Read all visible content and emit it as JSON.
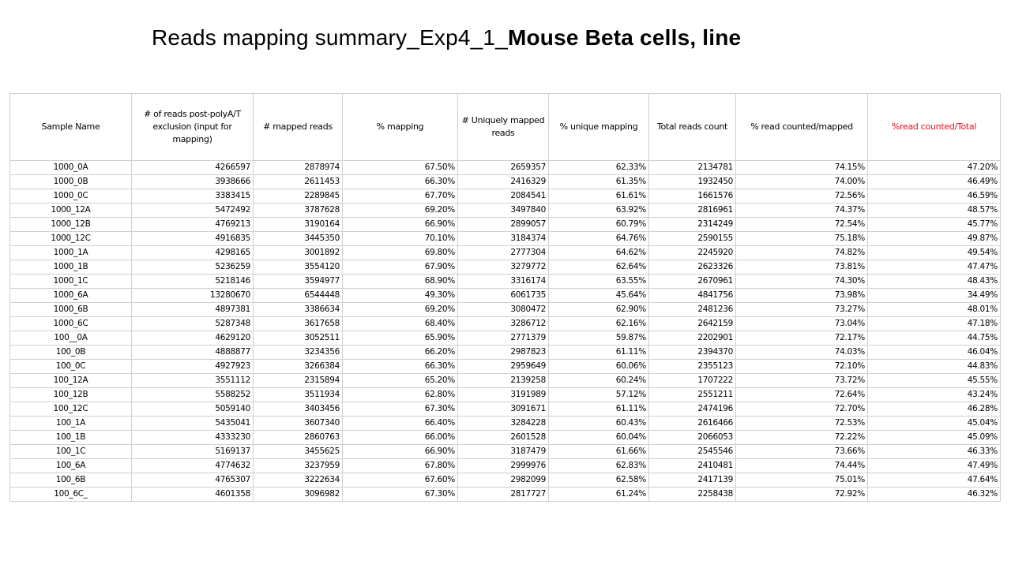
{
  "title": {
    "part_regular": "Reads mapping summary_Exp4_1_",
    "part_bold": "Mouse Beta cells, line"
  },
  "table": {
    "headers": [
      "Sample Name",
      "# of reads post-polyA/T exclusion (input for mapping)",
      "# mapped reads",
      "% mapping",
      "# Uniquely mapped reads",
      "% unique mapping",
      "Total reads count",
      "% read  counted/mapped",
      "%read counted/Total"
    ],
    "highlight_color": "#e3111b",
    "rows": [
      [
        "1000_0A",
        "4266597",
        "2878974",
        "67.50%",
        "2659357",
        "62.33%",
        "2134781",
        "74.15%",
        "47.20%"
      ],
      [
        "1000_0B",
        "3938666",
        "2611453",
        "66.30%",
        "2416329",
        "61.35%",
        "1932450",
        "74.00%",
        "46.49%"
      ],
      [
        "1000_0C",
        "3383415",
        "2289845",
        "67.70%",
        "2084541",
        "61.61%",
        "1661576",
        "72.56%",
        "46.59%"
      ],
      [
        "1000_12A",
        "5472492",
        "3787628",
        "69.20%",
        "3497840",
        "63.92%",
        "2816961",
        "74.37%",
        "48.57%"
      ],
      [
        "1000_12B",
        "4769213",
        "3190164",
        "66.90%",
        "2899057",
        "60.79%",
        "2314249",
        "72.54%",
        "45.77%"
      ],
      [
        "1000_12C",
        "4916835",
        "3445350",
        "70.10%",
        "3184374",
        "64.76%",
        "2590155",
        "75.18%",
        "49.87%"
      ],
      [
        "1000_1A",
        "4298165",
        "3001892",
        "69.80%",
        "2777304",
        "64.62%",
        "2245920",
        "74.82%",
        "49.54%"
      ],
      [
        "1000_1B",
        "5236259",
        "3554120",
        "67.90%",
        "3279772",
        "62.64%",
        "2623326",
        "73.81%",
        "47.47%"
      ],
      [
        "1000_1C",
        "5218146",
        "3594977",
        "68.90%",
        "3316174",
        "63.55%",
        "2670961",
        "74.30%",
        "48.43%"
      ],
      [
        "1000_6A",
        "13280670",
        "6544448",
        "49.30%",
        "6061735",
        "45.64%",
        "4841756",
        "73.98%",
        "34.49%"
      ],
      [
        "1000_6B",
        "4897381",
        "3386634",
        "69.20%",
        "3080472",
        "62.90%",
        "2481236",
        "73.27%",
        "48.01%"
      ],
      [
        "1000_6C",
        "5287348",
        "3617658",
        "68.40%",
        "3286712",
        "62.16%",
        "2642159",
        "73.04%",
        "47.18%"
      ],
      [
        "100__0A",
        "4629120",
        "3052511",
        "65.90%",
        "2771379",
        "59.87%",
        "2202901",
        "72.17%",
        "44.75%"
      ],
      [
        "100_0B",
        "4888877",
        "3234356",
        "66.20%",
        "2987823",
        "61.11%",
        "2394370",
        "74.03%",
        "46.04%"
      ],
      [
        "100_0C",
        "4927923",
        "3266384",
        "66.30%",
        "2959649",
        "60.06%",
        "2355123",
        "72.10%",
        "44.83%"
      ],
      [
        "100_12A",
        "3551112",
        "2315894",
        "65.20%",
        "2139258",
        "60.24%",
        "1707222",
        "73.72%",
        "45.55%"
      ],
      [
        "100_12B",
        "5588252",
        "3511934",
        "62.80%",
        "3191989",
        "57.12%",
        "2551211",
        "72.64%",
        "43.24%"
      ],
      [
        "100_12C",
        "5059140",
        "3403456",
        "67.30%",
        "3091671",
        "61.11%",
        "2474196",
        "72.70%",
        "46.28%"
      ],
      [
        "100_1A",
        "5435041",
        "3607340",
        "66.40%",
        "3284228",
        "60.43%",
        "2616466",
        "72.53%",
        "45.04%"
      ],
      [
        "100_1B",
        "4333230",
        "2860763",
        "66.00%",
        "2601528",
        "60.04%",
        "2066053",
        "72.22%",
        "45.09%"
      ],
      [
        "100_1C",
        "5169137",
        "3455625",
        "66.90%",
        "3187479",
        "61.66%",
        "2545546",
        "73.66%",
        "46.33%"
      ],
      [
        "100_6A",
        "4774632",
        "3237959",
        "67.80%",
        "2999976",
        "62.83%",
        "2410481",
        "74.44%",
        "47.49%"
      ],
      [
        "100_6B",
        "4765307",
        "3222634",
        "67.60%",
        "2982099",
        "62.58%",
        "2417139",
        "75.01%",
        "47.64%"
      ],
      [
        "100_6C_",
        "4601358",
        "3096982",
        "67.30%",
        "2817727",
        "61.24%",
        "2258438",
        "72.92%",
        "46.32%"
      ]
    ]
  }
}
